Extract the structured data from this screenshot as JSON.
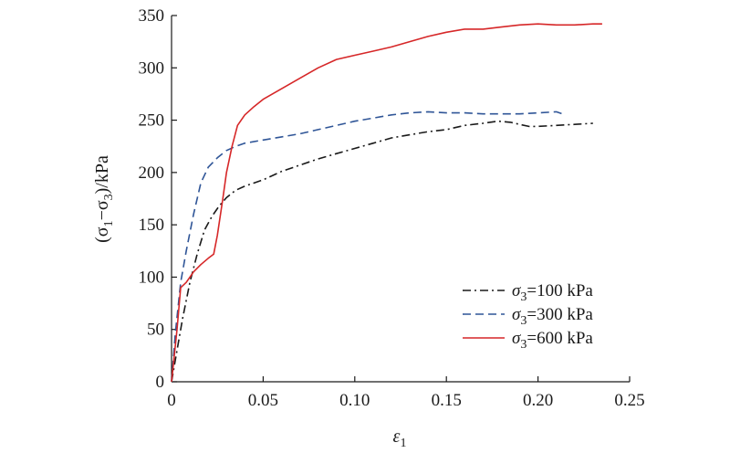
{
  "chart_data": {
    "type": "line",
    "title": "",
    "xlabel": "ε1",
    "xlabel_parts": {
      "symbol": "ε",
      "sub": "1"
    },
    "ylabel": "(σ1−σ3)/kPa",
    "ylabel_parts": {
      "open": "(σ",
      "sub1": "1",
      "minus": "−σ",
      "sub2": "3",
      "close": ")/kPa"
    },
    "xlim": [
      0,
      0.25
    ],
    "ylim": [
      0,
      350
    ],
    "x_ticks": [
      0,
      0.05,
      0.1,
      0.15,
      0.2,
      0.25
    ],
    "x_tick_labels": [
      "0",
      "0.05",
      "0.10",
      "0.15",
      "0.20",
      "0.25"
    ],
    "y_ticks": [
      0,
      50,
      100,
      150,
      200,
      250,
      300,
      350
    ],
    "y_tick_labels": [
      "0",
      "50",
      "100",
      "150",
      "200",
      "250",
      "300",
      "350"
    ],
    "grid": false,
    "legend_position": "bottom-right",
    "series": [
      {
        "name": "σ3=100 kPa",
        "label_parts": {
          "symbol": "σ",
          "sub": "3",
          "rest": "=100 kPa"
        },
        "color": "#1a1a1a",
        "dash": "dash-dot",
        "x": [
          0,
          0.003,
          0.006,
          0.01,
          0.014,
          0.018,
          0.022,
          0.026,
          0.03,
          0.035,
          0.04,
          0.05,
          0.06,
          0.07,
          0.08,
          0.09,
          0.1,
          0.11,
          0.12,
          0.13,
          0.14,
          0.15,
          0.16,
          0.17,
          0.178,
          0.185,
          0.19,
          0.195,
          0.2,
          0.21,
          0.22,
          0.23
        ],
        "y": [
          0,
          30,
          60,
          95,
          122,
          145,
          158,
          168,
          176,
          183,
          187,
          193,
          201,
          207,
          213,
          218,
          223,
          228,
          233,
          236,
          239,
          241,
          245,
          247,
          249,
          248,
          246,
          244,
          244,
          245,
          246,
          247
        ]
      },
      {
        "name": "σ3=300 kPa",
        "label_parts": {
          "symbol": "σ",
          "sub": "3",
          "rest": "=300 kPa"
        },
        "color": "#2f5597",
        "dash": "dashed",
        "x": [
          0,
          0.002,
          0.005,
          0.008,
          0.012,
          0.016,
          0.02,
          0.025,
          0.03,
          0.035,
          0.04,
          0.05,
          0.06,
          0.07,
          0.08,
          0.09,
          0.1,
          0.11,
          0.12,
          0.13,
          0.14,
          0.15,
          0.16,
          0.17,
          0.18,
          0.19,
          0.2,
          0.21,
          0.215
        ],
        "y": [
          0,
          45,
          95,
          125,
          160,
          190,
          205,
          214,
          221,
          225,
          228,
          231,
          234,
          237,
          241,
          245,
          249,
          252,
          255,
          257,
          258,
          257,
          257,
          256,
          256,
          256,
          257,
          258,
          255
        ]
      },
      {
        "name": "σ3=600 kPa",
        "label_parts": {
          "symbol": "σ",
          "sub": "3",
          "rest": "=600 kPa"
        },
        "color": "#d62728",
        "dash": "solid",
        "x": [
          0,
          0.003,
          0.005,
          0.008,
          0.012,
          0.016,
          0.02,
          0.023,
          0.025,
          0.028,
          0.03,
          0.033,
          0.036,
          0.04,
          0.045,
          0.05,
          0.06,
          0.07,
          0.08,
          0.09,
          0.1,
          0.11,
          0.12,
          0.13,
          0.14,
          0.15,
          0.16,
          0.17,
          0.18,
          0.19,
          0.2,
          0.21,
          0.22,
          0.23,
          0.235
        ],
        "y": [
          0,
          50,
          90,
          95,
          105,
          112,
          118,
          122,
          140,
          175,
          200,
          225,
          245,
          255,
          263,
          270,
          280,
          290,
          300,
          308,
          312,
          316,
          320,
          325,
          330,
          334,
          337,
          337,
          339,
          341,
          342,
          341,
          341,
          342,
          342
        ]
      }
    ]
  }
}
